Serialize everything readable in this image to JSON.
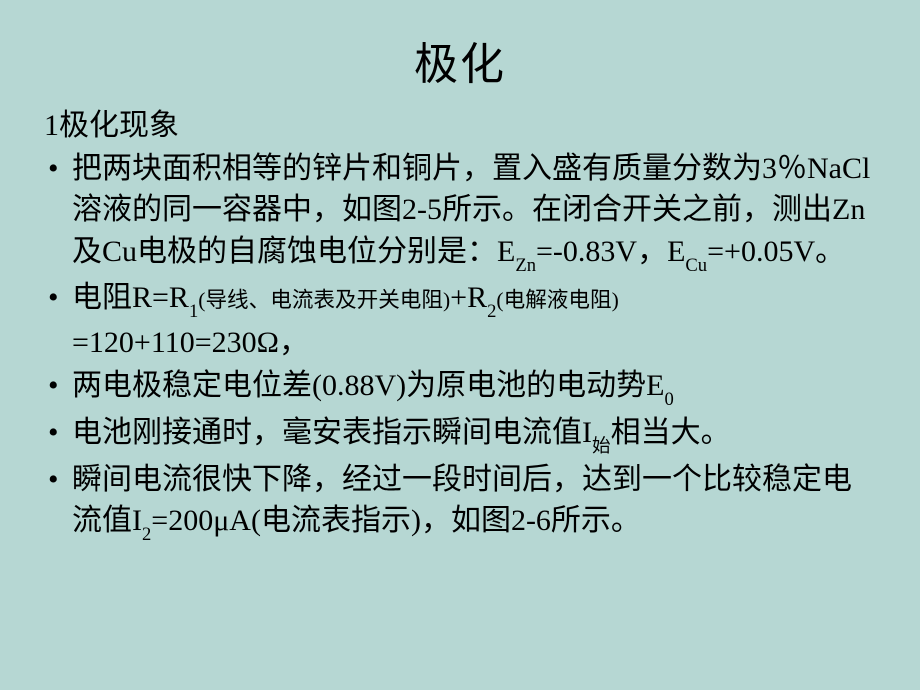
{
  "slide": {
    "background_color": "#b6d7d3",
    "text_color": "#000000",
    "title": "极化",
    "title_fontsize": 44,
    "heading": "1极化现象",
    "heading_fontsize": 30,
    "body_fontsize": 30,
    "bullets": [
      {
        "p1": "把两块面积相等的锌片和铜片，置入盛有质量分数为3％NaCl溶液的同一容器中，如图2-5所示。在闭合开关之前，测出Zn及Cu电极的自腐蚀电位分别是：E",
        "sub1": "Zn",
        "p2": "=-0.83V，E",
        "sub2": "Cu",
        "p3": "=+0.05V。"
      },
      {
        "p1": "电阻R=R",
        "sub1": "1",
        "small1": "(导线、电流表及开关电阻)",
        "p2": "+R",
        "sub2": "2",
        "small2": "(电解液电阻)",
        "p3": "=120+110=230Ω，"
      },
      {
        "p1": "两电极稳定电位差(0.88V)为原电池的电动势E",
        "sub1": "0"
      },
      {
        "p1": "电池刚接通时，毫安表指示瞬间电流值I",
        "sub1": "始",
        "p2": "相当大。"
      },
      {
        "p1": "瞬间电流很快下降，经过一段时间后，达到一个比较稳定电流值I",
        "sub1": "2",
        "p2": "=200μA(电流表指示)，如图2-6所示。"
      }
    ]
  }
}
